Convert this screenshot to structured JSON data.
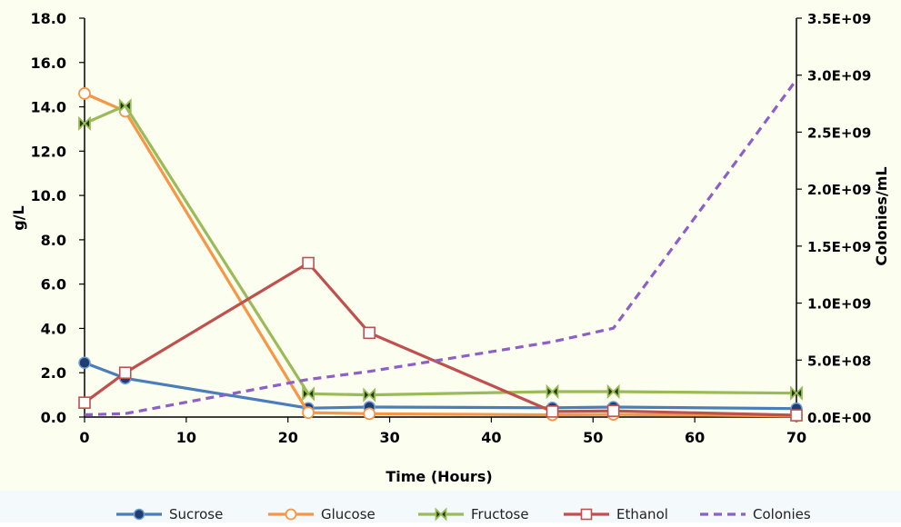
{
  "chart_data": {
    "type": "line",
    "xlabel": "Time (Hours)",
    "ylabel": "g/L",
    "y2label": "Colonies/mL",
    "xlim": [
      0,
      70
    ],
    "ylim": [
      0,
      18
    ],
    "y2lim": [
      0,
      3500000000
    ],
    "x_ticks": [
      0,
      10,
      20,
      30,
      40,
      50,
      60,
      70
    ],
    "x_tick_labels": [
      "0",
      "10",
      "20",
      "30",
      "40",
      "50",
      "60",
      "70"
    ],
    "y_ticks": [
      0,
      2,
      4,
      6,
      8,
      10,
      12,
      14,
      16,
      18
    ],
    "y_tick_labels": [
      "0.0",
      "2.0",
      "4.0",
      "6.0",
      "8.0",
      "10.0",
      "12.0",
      "14.0",
      "16.0",
      "18.0"
    ],
    "y2_ticks": [
      0,
      500000000,
      1000000000,
      1500000000,
      2000000000,
      2500000000,
      3000000000,
      3500000000
    ],
    "y2_tick_labels": [
      "0.0E+00",
      "5.0E+08",
      "1.0E+09",
      "1.5E+09",
      "2.0E+09",
      "2.5E+09",
      "3.0E+09",
      "3.5E+09"
    ],
    "grid": false,
    "legend_position": "bottom",
    "series": [
      {
        "name": "Sucrose",
        "axis": "left",
        "color": "#4a7ebb",
        "marker": "circle-filled",
        "x": [
          0,
          4,
          22,
          28,
          46,
          52,
          70
        ],
        "y": [
          2.45,
          1.75,
          0.4,
          0.45,
          0.42,
          0.45,
          0.38
        ]
      },
      {
        "name": "Glucose",
        "axis": "left",
        "color": "#f79646",
        "marker": "circle-open",
        "x": [
          0,
          4,
          22,
          28,
          46,
          52,
          70
        ],
        "y": [
          14.6,
          13.8,
          0.2,
          0.15,
          0.1,
          0.12,
          0.05
        ]
      },
      {
        "name": "Fructose",
        "axis": "left",
        "color": "#9bbb59",
        "marker": "bowtie",
        "x": [
          0,
          4,
          22,
          28,
          46,
          52,
          70
        ],
        "y": [
          13.25,
          14.05,
          1.05,
          1.0,
          1.15,
          1.15,
          1.08
        ]
      },
      {
        "name": "Ethanol",
        "axis": "left",
        "color": "#c0504d",
        "marker": "square-open",
        "x": [
          0,
          4,
          22,
          28,
          46,
          52,
          70
        ],
        "y": [
          0.65,
          2.0,
          6.95,
          3.8,
          0.25,
          0.28,
          0.08
        ]
      },
      {
        "name": "Colonies",
        "axis": "right",
        "color": "#8e5fc9",
        "marker": "none",
        "dash": true,
        "x": [
          0,
          4,
          22,
          28,
          46,
          52,
          70
        ],
        "y": [
          20000000,
          30000000,
          330000000,
          400000000,
          660000000,
          780000000,
          2960000000
        ]
      }
    ]
  }
}
